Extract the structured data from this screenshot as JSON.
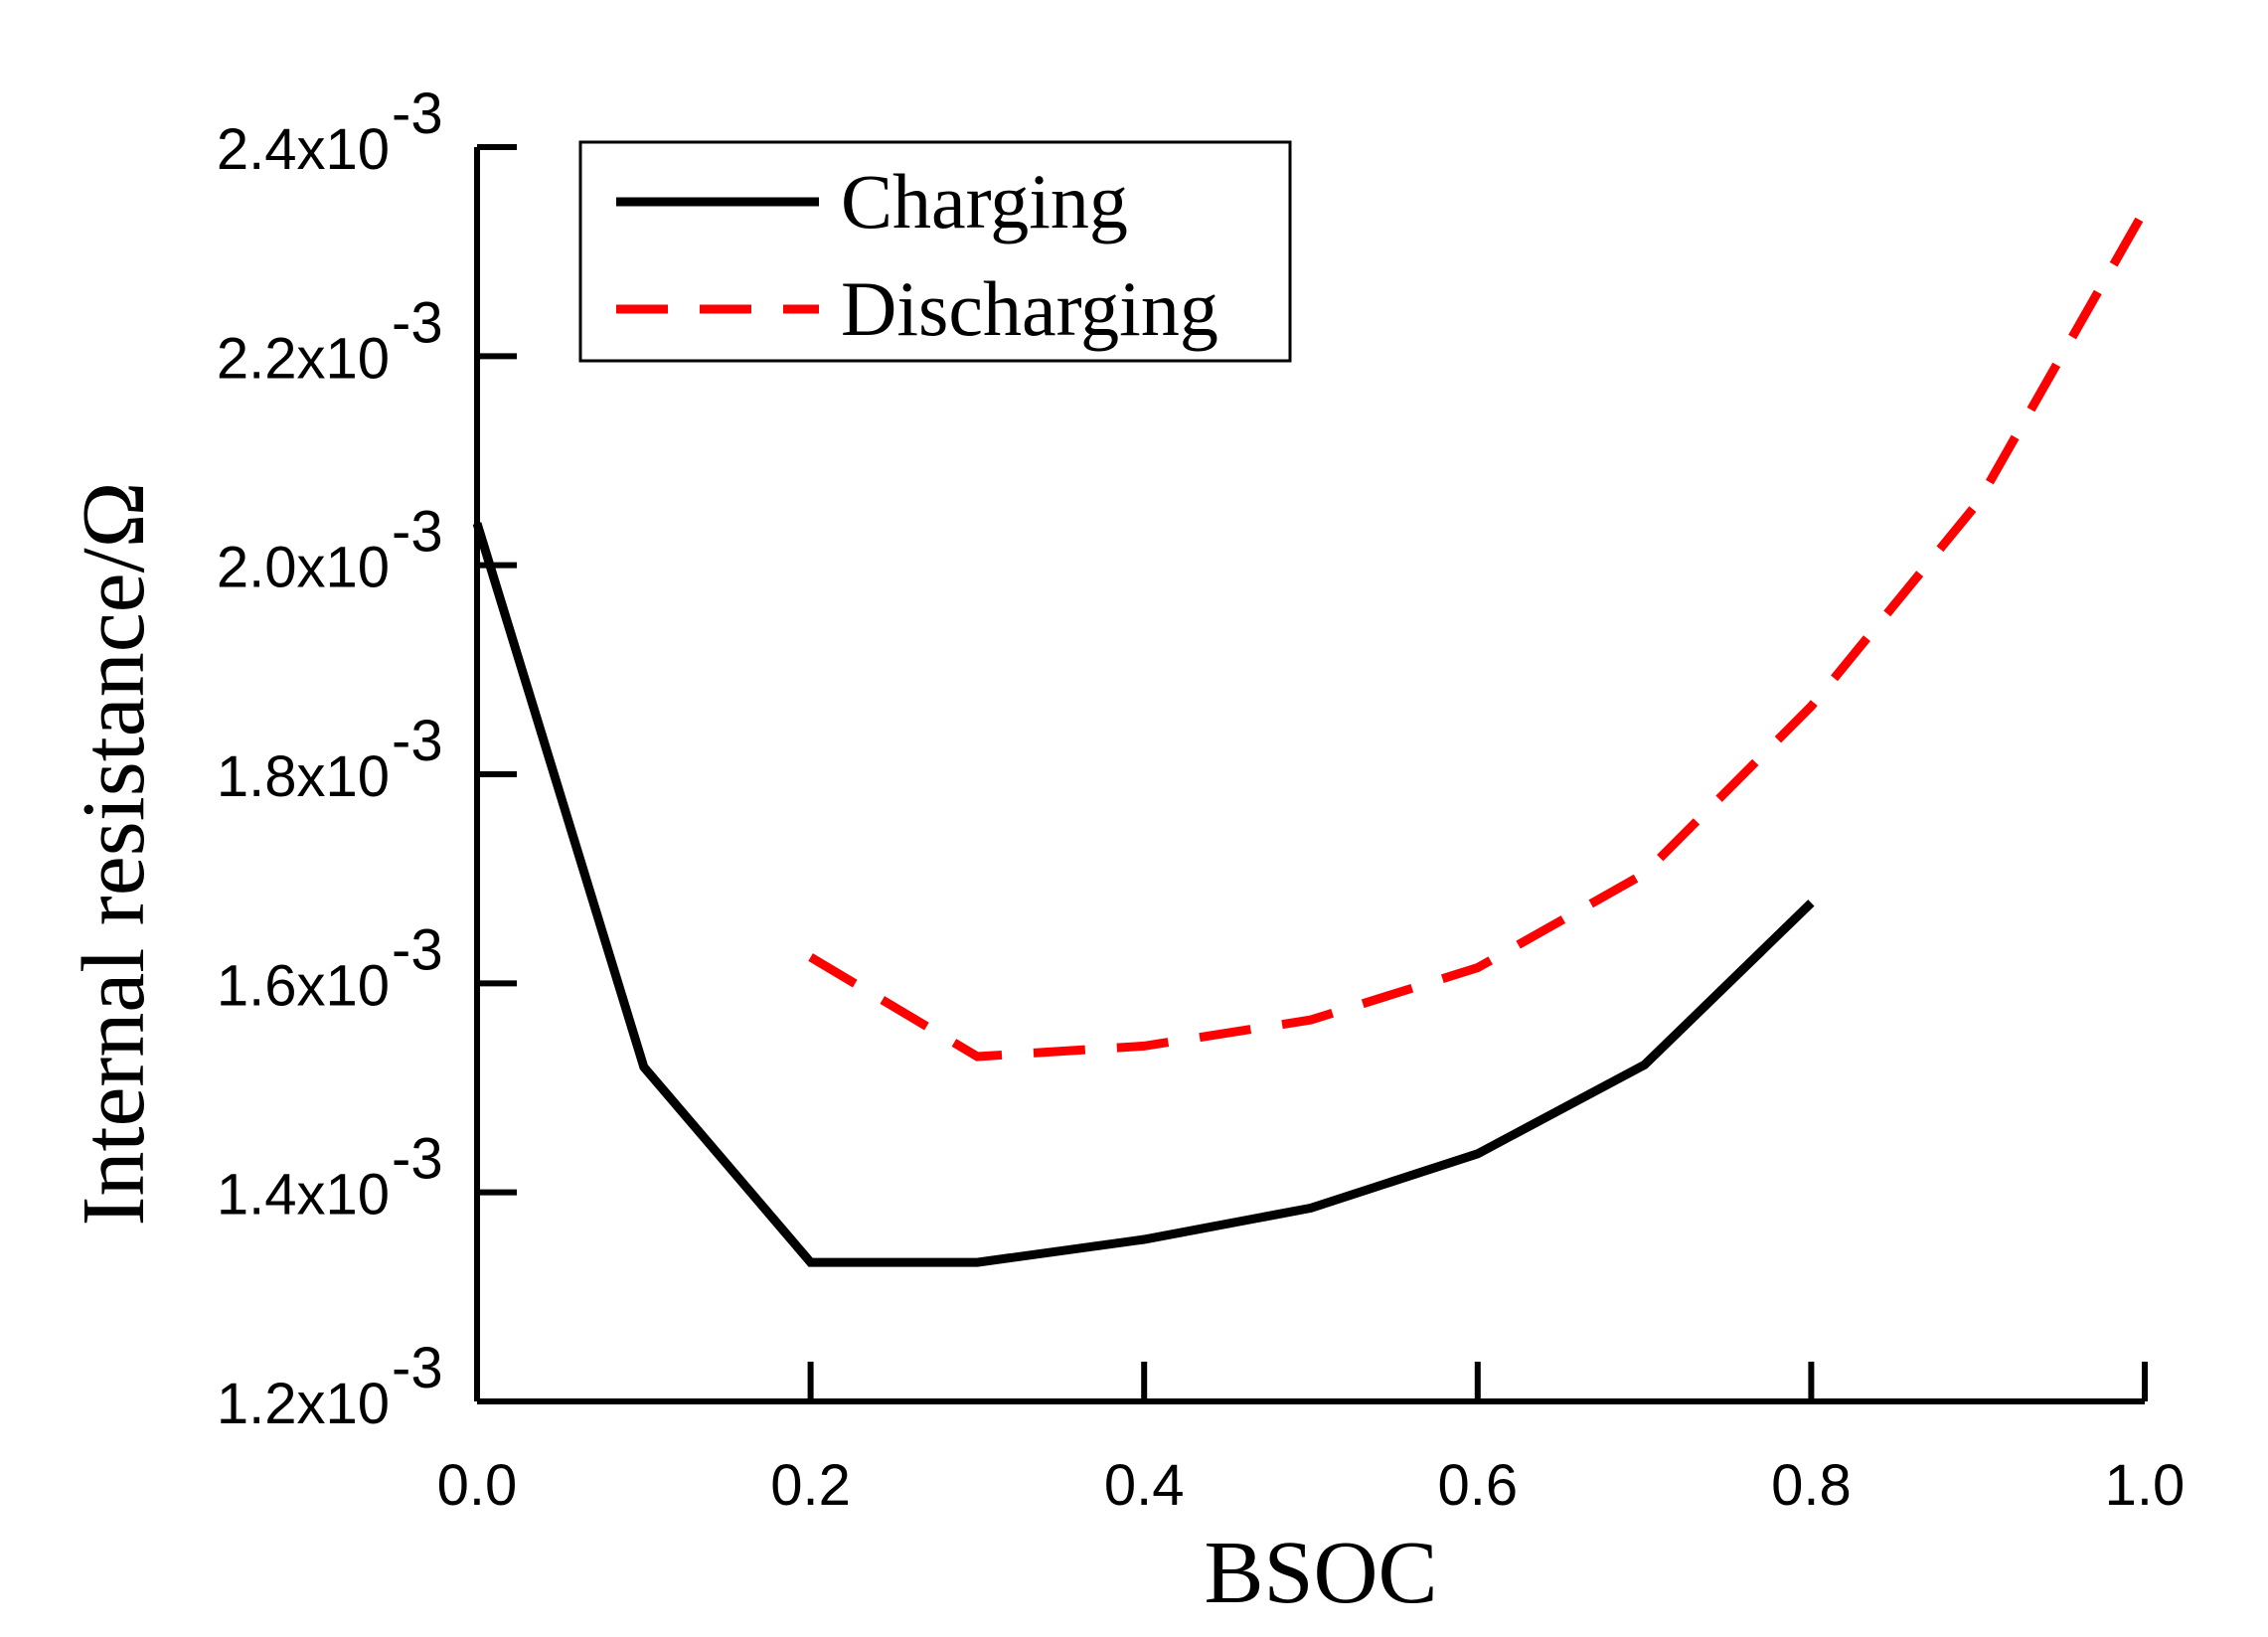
{
  "chart_data": {
    "type": "line",
    "xlabel": "BSOC",
    "ylabel": "Internal resistance/Ω",
    "xlim": [
      0.0,
      1.0
    ],
    "ylim": [
      0.0012,
      0.0024
    ],
    "x_ticks": [
      {
        "value": 0.0,
        "label": "0.0"
      },
      {
        "value": 0.2,
        "label": "0.2"
      },
      {
        "value": 0.4,
        "label": "0.4"
      },
      {
        "value": 0.6,
        "label": "0.6"
      },
      {
        "value": 0.8,
        "label": "0.8"
      },
      {
        "value": 1.0,
        "label": "1.0"
      }
    ],
    "y_ticks": [
      {
        "value": 0.0012,
        "mantissa": "1.2x10",
        "exponent": "-3"
      },
      {
        "value": 0.0014,
        "mantissa": "1.4x10",
        "exponent": "-3"
      },
      {
        "value": 0.0016,
        "mantissa": "1.6x10",
        "exponent": "-3"
      },
      {
        "value": 0.0018,
        "mantissa": "1.8x10",
        "exponent": "-3"
      },
      {
        "value": 0.002,
        "mantissa": "2.0x10",
        "exponent": "-3"
      },
      {
        "value": 0.0022,
        "mantissa": "2.2x10",
        "exponent": "-3"
      },
      {
        "value": 0.0024,
        "mantissa": "2.4x10",
        "exponent": "-3"
      }
    ],
    "series": [
      {
        "name": "Charging",
        "color": "#000000",
        "style": "solid",
        "x": [
          0.0,
          0.1,
          0.2,
          0.3,
          0.4,
          0.5,
          0.6,
          0.7,
          0.8
        ],
        "y": [
          0.00204,
          0.00152,
          0.001333,
          0.001333,
          0.001355,
          0.001385,
          0.001437,
          0.001522,
          0.001677
        ]
      },
      {
        "name": "Discharging",
        "color": "#ff0000",
        "style": "dashed",
        "x": [
          0.2,
          0.3,
          0.4,
          0.5,
          0.6,
          0.7,
          0.8,
          0.9,
          1.0
        ],
        "y": [
          0.001625,
          0.00153,
          0.00154,
          0.001565,
          0.001615,
          0.001705,
          0.001865,
          0.00206,
          0.00234
        ]
      }
    ],
    "legend": {
      "position": "top-left"
    }
  }
}
